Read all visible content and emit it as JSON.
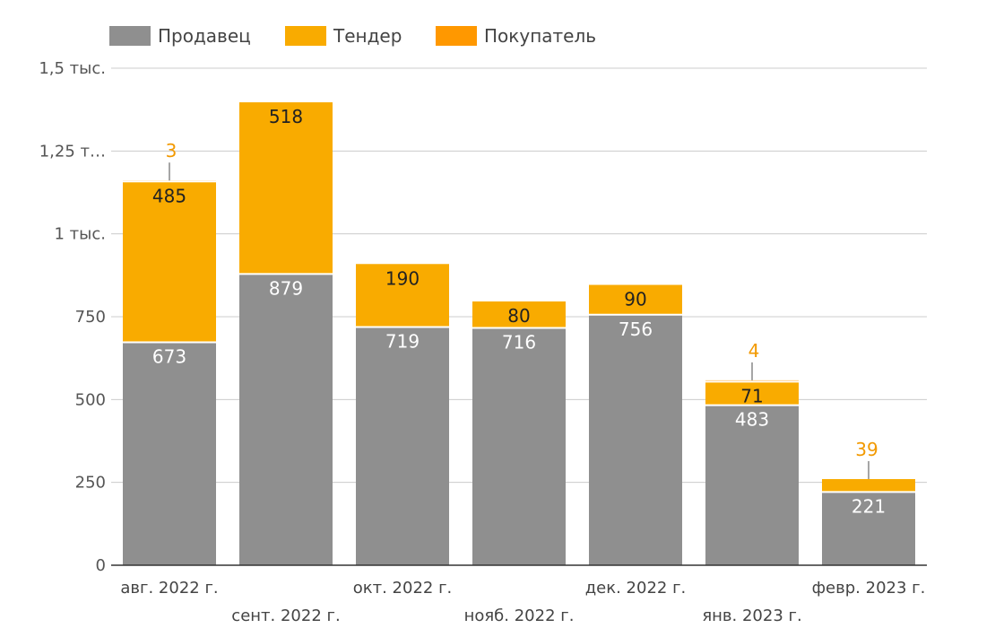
{
  "chart_data": {
    "type": "bar",
    "stacked": true,
    "categories": [
      "авг. 2022 г.",
      "сент. 2022 г.",
      "окт. 2022 г.",
      "нояб. 2022 г.",
      "дек. 2022 г.",
      "янв. 2023 г.",
      "февр. 2023 г."
    ],
    "series": [
      {
        "name": "Продавец",
        "color": "#8f8f8f",
        "values": [
          673,
          879,
          719,
          716,
          756,
          483,
          221
        ]
      },
      {
        "name": "Тендер",
        "color": "#f9ab00",
        "values": [
          485,
          518,
          190,
          80,
          90,
          71,
          39
        ]
      },
      {
        "name": "Покупатель",
        "color": "#ff9800",
        "values": [
          3,
          0,
          0,
          0,
          0,
          4,
          0
        ]
      }
    ],
    "bar_labels": [
      {
        "series": 0,
        "texts": [
          "673",
          "879",
          "719",
          "716",
          "756",
          "483",
          "221"
        ]
      },
      {
        "series": 1,
        "texts": [
          "485",
          "518",
          "190",
          "80",
          "90",
          "71",
          "39"
        ]
      },
      {
        "series": 2,
        "texts": [
          "3",
          "",
          "",
          "",
          "",
          "4",
          ""
        ]
      }
    ],
    "yticks": [
      {
        "value": 0,
        "label": "0"
      },
      {
        "value": 250,
        "label": "250"
      },
      {
        "value": 500,
        "label": "500"
      },
      {
        "value": 750,
        "label": "750"
      },
      {
        "value": 1000,
        "label": "1 тыс."
      },
      {
        "value": 1250,
        "label": "1,25 т…"
      },
      {
        "value": 1500,
        "label": "1,5 тыс."
      }
    ],
    "ylim": [
      0,
      1500
    ],
    "grid": true,
    "legend_position": "top-left",
    "colors": {
      "grid": "#cccccc",
      "axis": "#333333",
      "outside_label": "#f29900",
      "leader": "#888888"
    }
  }
}
